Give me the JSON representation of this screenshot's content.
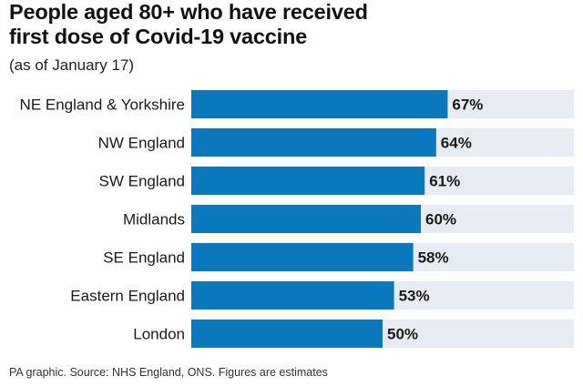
{
  "title_lines": [
    "People aged 80+ who have received",
    "first dose of Covid-19 vaccine"
  ],
  "subtitle": "(as of January 17)",
  "source": "PA graphic. Source: NHS England, ONS. Figures are estimates",
  "colors": {
    "bar": "#0a78bd",
    "track": "#e7ebf2",
    "text": "#1a1a1a"
  },
  "chart_data": {
    "type": "bar",
    "orientation": "horizontal",
    "title": "People aged 80+ who have received first dose of Covid-19 vaccine",
    "subtitle": "(as of January 17)",
    "categories": [
      "NE England & Yorkshire",
      "NW England",
      "SW England",
      "Midlands",
      "SE England",
      "Eastern England",
      "London"
    ],
    "values": [
      67,
      64,
      61,
      60,
      58,
      53,
      50
    ],
    "value_labels": [
      "67%",
      "64%",
      "61%",
      "60%",
      "58%",
      "53%",
      "50%"
    ],
    "xlim": [
      0,
      100
    ],
    "grid": false
  }
}
